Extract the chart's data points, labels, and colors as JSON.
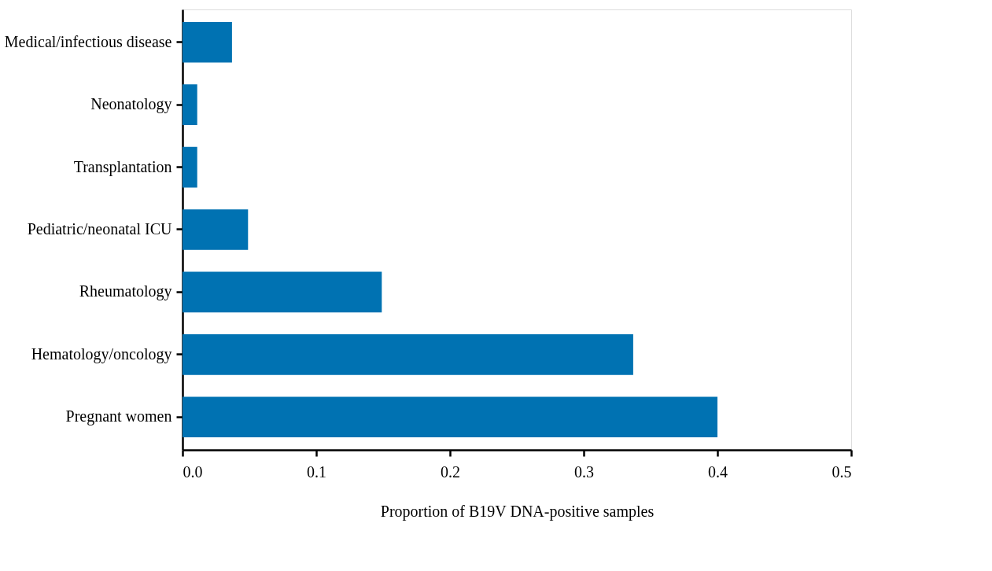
{
  "chart_data": {
    "type": "bar",
    "orientation": "horizontal",
    "categories": [
      "Medical/infectious disease",
      "Neonatology",
      "Transplantation",
      "Pediatric/neonatal ICU",
      "Rheumatology",
      "Hematology/oncology",
      "Pregnant women"
    ],
    "values": [
      0.037,
      0.011,
      0.011,
      0.049,
      0.149,
      0.337,
      0.4
    ],
    "color": "#0072b2",
    "xlim": [
      0.0,
      0.5
    ],
    "xticks": [
      {
        "value": 0.0,
        "label": "0.0"
      },
      0.1,
      0.2,
      0.3,
      0.4,
      0.5
    ],
    "xlabel": "Proportion of B19V DNA-positive samples",
    "grid": false
  }
}
